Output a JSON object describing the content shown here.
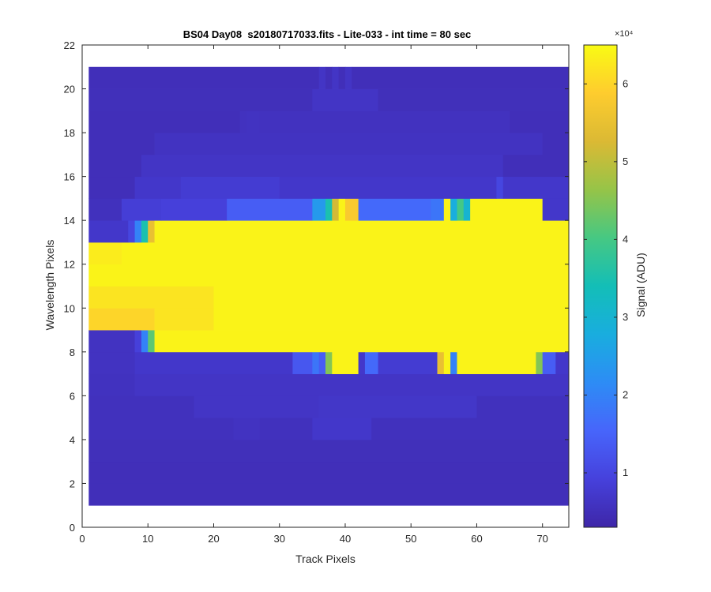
{
  "chart_data": {
    "type": "heatmap",
    "title": "BS04 Day08  s20180717033.fits - Lite-033 - int time = 80 sec",
    "xlabel": "Track Pixels",
    "ylabel": "Wavelength Pixels",
    "xlim": [
      0,
      74
    ],
    "ylim": [
      0,
      22
    ],
    "x_ticks": [
      "0",
      "10",
      "20",
      "30",
      "40",
      "50",
      "60",
      "70"
    ],
    "y_ticks": [
      "0",
      "2",
      "4",
      "6",
      "8",
      "10",
      "12",
      "14",
      "16",
      "18",
      "20",
      "22"
    ],
    "x_tick_values": [
      0,
      10,
      20,
      30,
      40,
      50,
      60,
      70
    ],
    "y_tick_values": [
      0,
      2,
      4,
      6,
      8,
      10,
      12,
      14,
      16,
      18,
      20,
      22
    ],
    "grid": false,
    "colorbar": {
      "label": "Signal (ADU)",
      "exponent_label": "×10⁴",
      "ticks": [
        "1",
        "2",
        "3",
        "4",
        "5",
        "6"
      ],
      "tick_values": [
        10000,
        20000,
        30000,
        40000,
        50000,
        60000
      ],
      "range": [
        3000,
        65000
      ],
      "colormap": "parula"
    },
    "data_extent": {
      "x": [
        1,
        74
      ],
      "y": [
        1,
        21
      ]
    },
    "columns": 73,
    "rows": [
      {
        "y": 1,
        "value": 5000
      },
      {
        "y": 2,
        "value": 5000
      },
      {
        "y": 3,
        "value": 5200
      },
      {
        "y": 4,
        "value": 5500,
        "spans": [
          [
            23,
            27,
            6000
          ],
          [
            35,
            44,
            7000
          ]
        ]
      },
      {
        "y": 5,
        "value": 5500,
        "spans": [
          [
            17,
            36,
            6500
          ],
          [
            36,
            60,
            6800
          ]
        ]
      },
      {
        "y": 6,
        "value": 5700,
        "spans": [
          [
            8,
            74,
            6500
          ]
        ]
      },
      {
        "y": 7,
        "value": 6000,
        "spans": [
          [
            8,
            74,
            7000
          ],
          [
            32,
            35,
            13000
          ],
          [
            35,
            36,
            18000
          ],
          [
            36,
            37,
            14000
          ],
          [
            37,
            38,
            45000
          ],
          [
            38,
            42,
            64000
          ],
          [
            43,
            45,
            16000
          ],
          [
            45,
            54,
            8000
          ],
          [
            54,
            55,
            55000
          ],
          [
            55,
            56,
            64000
          ],
          [
            56,
            57,
            20000
          ],
          [
            57,
            69,
            64000
          ],
          [
            69,
            70,
            45000
          ],
          [
            70,
            72,
            14000
          ]
        ]
      },
      {
        "y": 8,
        "value": 64000,
        "spans": [
          [
            1,
            8,
            6000
          ],
          [
            8,
            9,
            9000
          ],
          [
            9,
            10,
            20000
          ],
          [
            10,
            11,
            42000
          ]
        ]
      },
      {
        "y": 9,
        "value": 64000,
        "spans": [
          [
            1,
            11,
            60000
          ],
          [
            11,
            20,
            62000
          ]
        ]
      },
      {
        "y": 10,
        "value": 64000,
        "spans": [
          [
            1,
            20,
            62000
          ]
        ]
      },
      {
        "y": 11,
        "value": 64000
      },
      {
        "y": 12,
        "value": 64000,
        "spans": [
          [
            1,
            6,
            63000
          ]
        ]
      },
      {
        "y": 13,
        "value": 64000,
        "spans": [
          [
            1,
            7,
            7000
          ],
          [
            7,
            8,
            10000
          ],
          [
            8,
            9,
            20000
          ],
          [
            9,
            10,
            35000
          ],
          [
            10,
            11,
            55000
          ]
        ]
      },
      {
        "y": 14,
        "value": 9000,
        "spans": [
          [
            1,
            6,
            5500
          ],
          [
            6,
            12,
            8500
          ],
          [
            22,
            35,
            14000
          ],
          [
            35,
            37,
            24000
          ],
          [
            37,
            38,
            35000
          ],
          [
            38,
            39,
            52000
          ],
          [
            39,
            40,
            64000
          ],
          [
            40,
            42,
            58000
          ],
          [
            42,
            53,
            16000
          ],
          [
            53,
            55,
            18000
          ],
          [
            55,
            56,
            64000
          ],
          [
            56,
            57,
            28000
          ],
          [
            57,
            58,
            40000
          ],
          [
            58,
            59,
            30000
          ],
          [
            59,
            70,
            64000
          ],
          [
            70,
            74,
            7000
          ]
        ]
      },
      {
        "y": 15,
        "value": 7000,
        "spans": [
          [
            1,
            8,
            5000
          ],
          [
            15,
            30,
            8000
          ],
          [
            63,
            64,
            10000
          ]
        ]
      },
      {
        "y": 16,
        "value": 6500,
        "spans": [
          [
            1,
            9,
            5000
          ],
          [
            64,
            74,
            5000
          ]
        ]
      },
      {
        "y": 17,
        "value": 6000,
        "spans": [
          [
            1,
            11,
            5000
          ],
          [
            70,
            74,
            5000
          ]
        ]
      },
      {
        "y": 18,
        "value": 5800,
        "spans": [
          [
            1,
            24,
            5000
          ],
          [
            25,
            27,
            6000
          ],
          [
            65,
            74,
            5000
          ]
        ]
      },
      {
        "y": 19,
        "value": 5200,
        "spans": [
          [
            35,
            45,
            6500
          ]
        ]
      },
      {
        "y": 20,
        "value": 5000,
        "spans": [
          [
            36,
            37,
            6500
          ],
          [
            38,
            39,
            6500
          ],
          [
            40,
            41,
            6500
          ]
        ]
      }
    ]
  }
}
